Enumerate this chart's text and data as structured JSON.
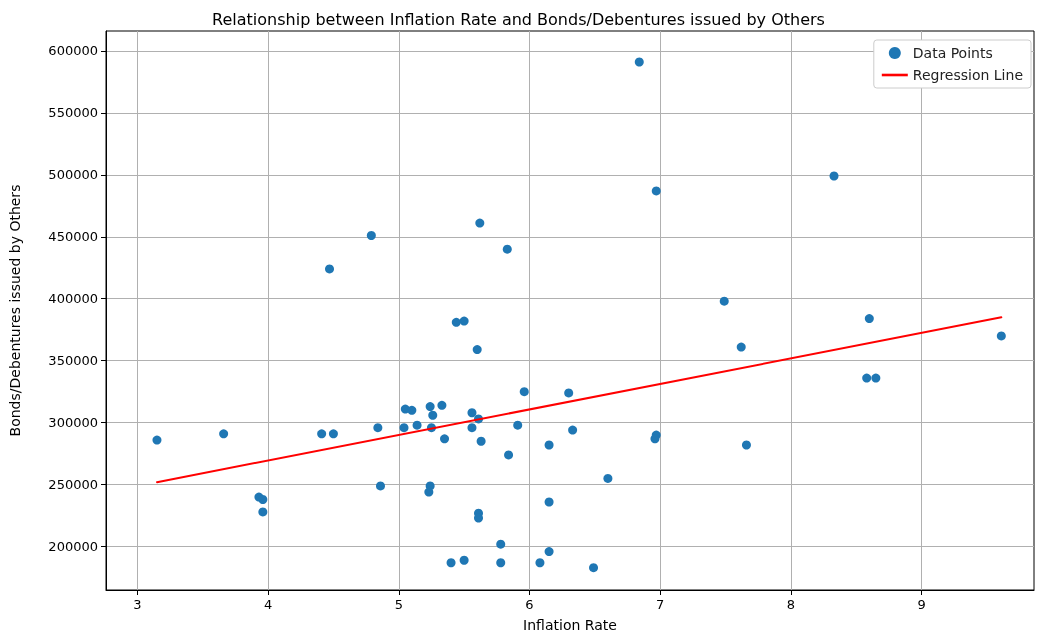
{
  "chart_data": {
    "type": "scatter",
    "title": "Relationship between Inflation Rate and Bonds/Debentures issued by Others",
    "xlabel": "Inflation Rate",
    "ylabel": "Bonds/Debentures issued by Others",
    "xlim": [
      2.76,
      9.86
    ],
    "xticks": [
      3,
      4,
      5,
      6,
      7,
      8,
      9
    ],
    "ylim": [
      165000,
      616000
    ],
    "yticks": [
      200000,
      250000,
      300000,
      350000,
      400000,
      450000,
      500000,
      550000,
      600000
    ],
    "grid": true,
    "legend": "top right",
    "series": [
      {
        "name": "Data Points",
        "marker": "circle",
        "color": "#1f77b4",
        "x": [
          3.15,
          3.66,
          3.93,
          3.96,
          3.96,
          4.41,
          4.5,
          4.79,
          4.47,
          4.84,
          4.86,
          5.04,
          5.05,
          5.1,
          5.14,
          5.24,
          5.26,
          5.25,
          5.24,
          5.23,
          5.33,
          5.35,
          5.44,
          5.5,
          5.4,
          5.5,
          5.56,
          5.56,
          5.61,
          5.6,
          5.62,
          5.63,
          5.61,
          5.61,
          5.78,
          5.78,
          5.83,
          5.84,
          5.91,
          5.96,
          6.08,
          6.15,
          6.15,
          6.15,
          6.3,
          6.33,
          6.49,
          6.6,
          6.84,
          6.97,
          6.97,
          6.96,
          7.49,
          7.62,
          7.66,
          8.33,
          8.6,
          8.58,
          8.65,
          9.61
        ],
        "values": [
          286000,
          291000,
          240000,
          238000,
          228000,
          291000,
          291000,
          451000,
          424000,
          296000,
          249000,
          296000,
          311000,
          310000,
          298000,
          313000,
          306000,
          296000,
          249000,
          244000,
          314000,
          287000,
          381000,
          382000,
          187000,
          189000,
          308000,
          296000,
          303000,
          359000,
          461000,
          285000,
          227000,
          223000,
          202000,
          187000,
          440000,
          274000,
          298000,
          325000,
          187000,
          196000,
          236000,
          282000,
          324000,
          294000,
          183000,
          255000,
          591000,
          487000,
          290000,
          287000,
          398000,
          361000,
          282000,
          499000,
          384000,
          336000,
          336000,
          370000
        ]
      },
      {
        "name": "Regression Line",
        "type": "line",
        "marker": "none",
        "line_style": "solid",
        "color": "#ff0000",
        "x": [
          3.15,
          9.61
        ],
        "values": [
          252000,
          385000
        ]
      }
    ]
  }
}
